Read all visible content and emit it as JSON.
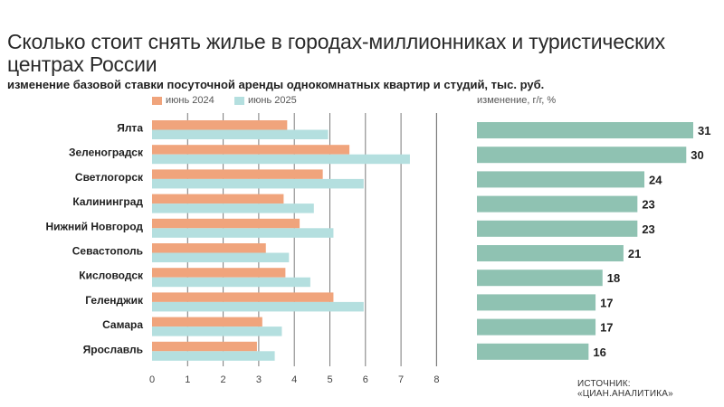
{
  "header": {
    "title": "Сколько стоит снять жилье в городах-миллионниках и туристических центрах России",
    "subtitle": "изменение базовой ставки посуточной аренды однокомнатных квартир и студий, тыс. руб."
  },
  "right_panel_label": "изменение, г/г, %",
  "source": "ИСТОЧНИК: «ЦИАН.АНАЛИТИКА»",
  "colors": {
    "series_2024": "#f0a47c",
    "series_2025": "#b4dfdf",
    "change": "#8fc2b2",
    "grid": "#7a7a7a"
  },
  "chart_data": [
    {
      "type": "bar",
      "orientation": "horizontal",
      "categories": [
        "Ялта",
        "Зеленоградск",
        "Светлогорск",
        "Калининград",
        "Нижний Новгород",
        "Севастополь",
        "Кисловодск",
        "Геленджик",
        "Самара",
        "Ярославль"
      ],
      "series": [
        {
          "name": "июнь 2024",
          "values": [
            3.8,
            5.55,
            4.8,
            3.7,
            4.15,
            3.2,
            3.75,
            5.1,
            3.1,
            2.95
          ]
        },
        {
          "name": "июнь 2025",
          "values": [
            4.95,
            7.25,
            5.95,
            4.55,
            5.1,
            3.85,
            4.45,
            5.95,
            3.65,
            3.45
          ]
        }
      ],
      "xlim": [
        0,
        8
      ],
      "xticks": [
        "0",
        "1",
        "2",
        "3",
        "4",
        "5",
        "6",
        "7",
        "8"
      ],
      "grid": true,
      "legend": "top"
    },
    {
      "type": "bar",
      "orientation": "horizontal",
      "categories": [
        "Ялта",
        "Зеленоградск",
        "Светлогорск",
        "Калининград",
        "Нижний Новгород",
        "Севастополь",
        "Кисловодск",
        "Геленджик",
        "Самара",
        "Ярославль"
      ],
      "values": [
        31,
        30,
        24,
        23,
        23,
        21,
        18,
        17,
        17,
        16
      ],
      "value_labels": [
        "31",
        "30",
        "24",
        "23",
        "23",
        "21",
        "18",
        "17",
        "17",
        "16"
      ],
      "xlim": [
        0,
        31
      ]
    }
  ]
}
